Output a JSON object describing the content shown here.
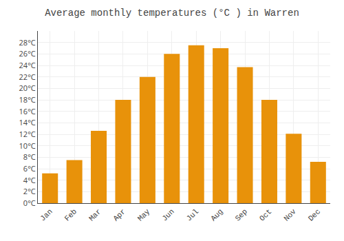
{
  "chart_data": {
    "type": "bar",
    "title": "Average monthly temperatures (°C ) in Warren",
    "categories": [
      "Jan",
      "Feb",
      "Mar",
      "Apr",
      "May",
      "Jun",
      "Jul",
      "Aug",
      "Sep",
      "Oct",
      "Nov",
      "Dec"
    ],
    "values": [
      5.2,
      7.5,
      12.6,
      18.0,
      22.0,
      26.0,
      27.5,
      27.0,
      23.7,
      18.0,
      12.1,
      7.2
    ],
    "color": "#E8920A",
    "ylim": [
      0,
      30
    ],
    "yticks": [
      {
        "value": 0,
        "label": "0°C"
      },
      {
        "value": 2,
        "label": "2°C"
      },
      {
        "value": 4,
        "label": "4°C"
      },
      {
        "value": 6,
        "label": "6°C"
      },
      {
        "value": 8,
        "label": "8°C"
      },
      {
        "value": 10,
        "label": "10°C"
      },
      {
        "value": 12,
        "label": "12°C"
      },
      {
        "value": 14,
        "label": "14°C"
      },
      {
        "value": 16,
        "label": "16°C"
      },
      {
        "value": 18,
        "label": "18°C"
      },
      {
        "value": 20,
        "label": "20°C"
      },
      {
        "value": 22,
        "label": "22°C"
      },
      {
        "value": 24,
        "label": "24°C"
      },
      {
        "value": 26,
        "label": "26°C"
      },
      {
        "value": 28,
        "label": "28°C"
      }
    ],
    "grid": true
  }
}
